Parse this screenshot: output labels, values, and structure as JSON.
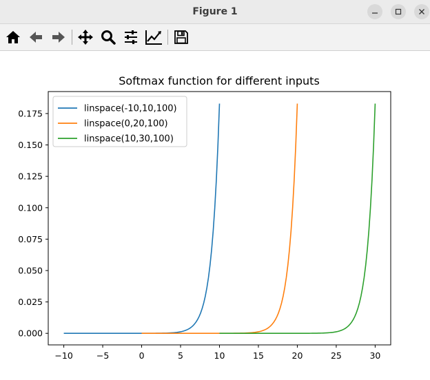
{
  "window": {
    "title": "Figure 1"
  },
  "toolbar": {
    "buttons": [
      "home-icon",
      "back-arrow-icon",
      "forward-arrow-icon",
      "pan-icon",
      "zoom-icon",
      "configure-subplots-icon",
      "edit-axis-icon",
      "save-icon"
    ]
  },
  "colors": {
    "series1": "#1f77b4",
    "series2": "#ff7f0e",
    "series3": "#2ca02c"
  },
  "chart_data": {
    "type": "line",
    "title": "Softmax function for different inputs",
    "xlabel": "",
    "ylabel": "",
    "xlim": [
      -12.0,
      32.0
    ],
    "ylim": [
      -0.0092,
      0.1925
    ],
    "x_ticks": [
      -10,
      -5,
      0,
      5,
      10,
      15,
      20,
      25,
      30
    ],
    "x_tick_labels": [
      "−10",
      "−5",
      "0",
      "5",
      "10",
      "15",
      "20",
      "25",
      "30"
    ],
    "y_ticks": [
      0.0,
      0.025,
      0.05,
      0.075,
      0.1,
      0.125,
      0.15,
      0.175
    ],
    "y_tick_labels": [
      "0.000",
      "0.025",
      "0.050",
      "0.075",
      "0.100",
      "0.125",
      "0.150",
      "0.175"
    ],
    "grid": false,
    "legend_position": "top-left",
    "series": [
      {
        "name": "linspace(-10,10,100)",
        "x_start": -10,
        "x_end": 10,
        "points": 100
      },
      {
        "name": "linspace(0,20,100)",
        "x_start": 0,
        "x_end": 20,
        "points": 100
      },
      {
        "name": "linspace(10,30,100)",
        "x_start": 10,
        "x_end": 30,
        "points": 100
      }
    ]
  }
}
